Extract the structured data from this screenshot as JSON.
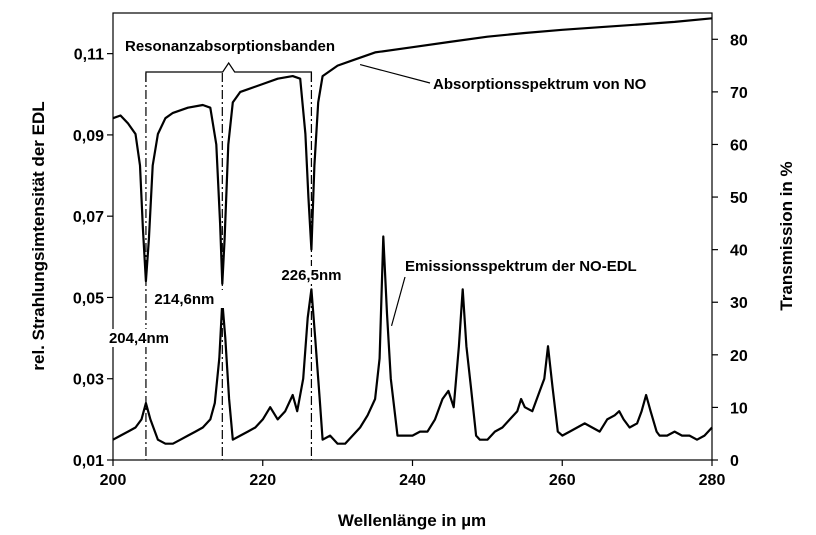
{
  "chart_data": {
    "type": "line",
    "xlabel": "Wellenlänge in µm",
    "ylabel": "rel. Strahlungsimtensität der EDL",
    "y2label": "Transmission in %",
    "xlim": [
      200,
      280
    ],
    "ylim": [
      0.01,
      0.12
    ],
    "y2lim": [
      0,
      85
    ],
    "x_ticks": [
      "200",
      "220",
      "240",
      "260",
      "280"
    ],
    "y_ticks": [
      "0,01",
      "0,03",
      "0,05",
      "0,07",
      "0,09",
      "0,11"
    ],
    "y2_ticks": [
      "0",
      "10",
      "20",
      "30",
      "40",
      "50",
      "60",
      "70",
      "80"
    ],
    "grid": false,
    "legend": "none",
    "series": [
      {
        "axis": "right",
        "x": [
          200,
          201,
          202,
          203,
          203.6,
          204.0,
          204.4,
          204.8,
          205.3,
          206,
          207,
          208,
          210,
          212,
          213,
          213.8,
          214.3,
          214.6,
          214.9,
          215.4,
          216,
          217,
          218,
          220,
          222,
          224,
          225,
          225.7,
          226.1,
          226.5,
          226.9,
          227.4,
          228,
          230,
          232,
          235,
          240,
          245,
          250,
          255,
          260,
          265,
          270,
          275,
          280
        ],
        "y": [
          65,
          65.5,
          64,
          62,
          56,
          44,
          34,
          42,
          56,
          62,
          65,
          66,
          67,
          67.5,
          67,
          60,
          45,
          33.5,
          42,
          60,
          68,
          70,
          70.5,
          71.5,
          72.5,
          73,
          72.5,
          62,
          50,
          40,
          56,
          68,
          73,
          75,
          76,
          77.5,
          78.5,
          79.5,
          80.5,
          81.2,
          81.8,
          82.3,
          82.8,
          83.3,
          84
        ]
      },
      {
        "axis": "left",
        "x": [
          200,
          201,
          202,
          203,
          203.8,
          204.4,
          205,
          206,
          207,
          208,
          209,
          210,
          211,
          212,
          213,
          213.6,
          214.2,
          214.6,
          215.0,
          215.5,
          216,
          217,
          218,
          219,
          220,
          221,
          222,
          223,
          224,
          224.6,
          225.4,
          226.0,
          226.5,
          227.0,
          227.6,
          228,
          229,
          230,
          231,
          232,
          233,
          234,
          235,
          235.6,
          236.1,
          236.6,
          237.1,
          238,
          239,
          240,
          241,
          242,
          243,
          244,
          244.8,
          245.5,
          246.2,
          246.7,
          247.2,
          247.8,
          248.5,
          249,
          250,
          251,
          252,
          253,
          254,
          254.5,
          255,
          256,
          257,
          257.6,
          258.1,
          258.7,
          259.4,
          260,
          261,
          262,
          263,
          264,
          265,
          266,
          267,
          267.6,
          268.2,
          269,
          270,
          270.6,
          271.2,
          271.8,
          272.6,
          273,
          274,
          275,
          276,
          277,
          278,
          279,
          280
        ],
        "y": [
          0.015,
          0.016,
          0.017,
          0.018,
          0.02,
          0.024,
          0.02,
          0.015,
          0.014,
          0.014,
          0.015,
          0.016,
          0.017,
          0.018,
          0.02,
          0.024,
          0.035,
          0.049,
          0.04,
          0.025,
          0.015,
          0.016,
          0.017,
          0.018,
          0.02,
          0.023,
          0.02,
          0.022,
          0.026,
          0.022,
          0.03,
          0.045,
          0.052,
          0.04,
          0.025,
          0.015,
          0.016,
          0.014,
          0.014,
          0.016,
          0.018,
          0.021,
          0.025,
          0.035,
          0.065,
          0.046,
          0.03,
          0.016,
          0.016,
          0.016,
          0.017,
          0.017,
          0.02,
          0.025,
          0.027,
          0.023,
          0.038,
          0.052,
          0.038,
          0.028,
          0.016,
          0.015,
          0.015,
          0.017,
          0.018,
          0.02,
          0.022,
          0.025,
          0.023,
          0.022,
          0.027,
          0.03,
          0.038,
          0.028,
          0.017,
          0.016,
          0.017,
          0.018,
          0.019,
          0.018,
          0.017,
          0.02,
          0.021,
          0.022,
          0.02,
          0.018,
          0.019,
          0.022,
          0.026,
          0.022,
          0.017,
          0.016,
          0.016,
          0.017,
          0.016,
          0.016,
          0.015,
          0.016,
          0.018
        ]
      }
    ],
    "markers": [
      {
        "x": 204.4,
        "label": "204,4nm"
      },
      {
        "x": 214.6,
        "label": "214,6nm"
      },
      {
        "x": 226.5,
        "label": "226,5nm"
      }
    ],
    "annotations": {
      "bracket": "Resonanzabsorptionsbanden",
      "absorption": "Absorptionsspektrum von NO",
      "emission": "Emissionsspektrum der NO-EDL"
    }
  }
}
